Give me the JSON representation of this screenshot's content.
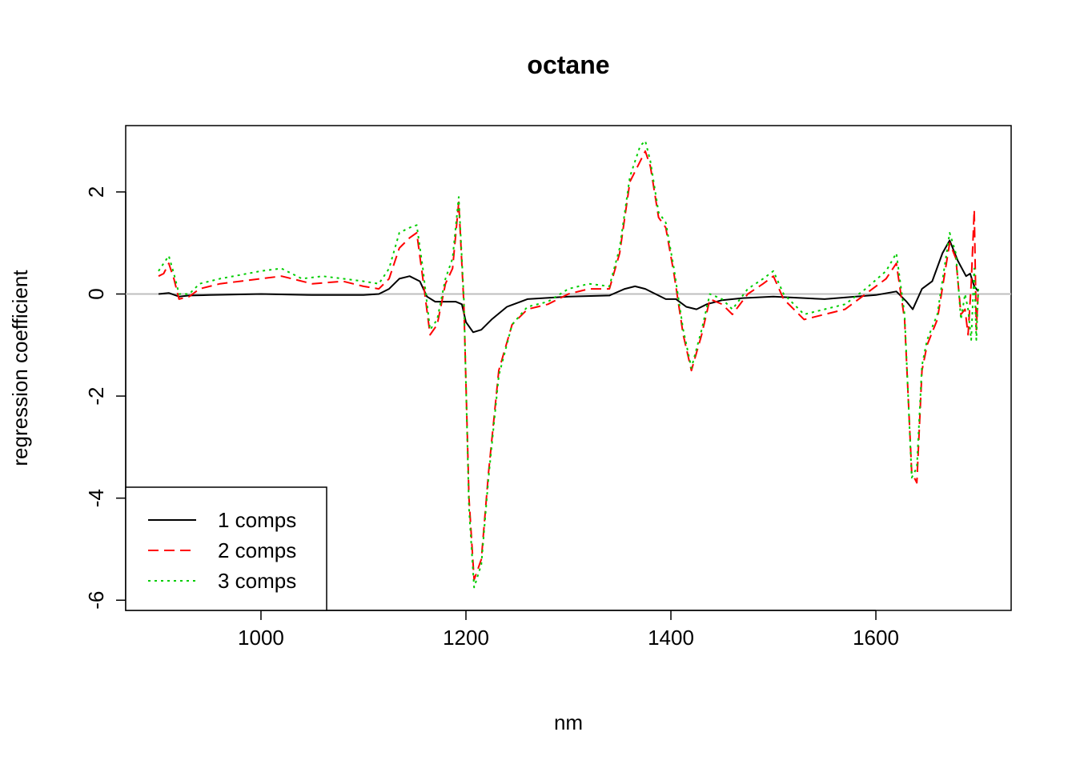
{
  "chart_data": {
    "type": "line",
    "title": "octane",
    "xlabel": "nm",
    "ylabel": "regression coefficient",
    "xlim": [
      868,
      1732
    ],
    "ylim": [
      -6.2,
      3.3
    ],
    "x_ticks": [
      1000,
      1200,
      1400,
      1600
    ],
    "y_ticks": [
      2,
      0,
      -2,
      -4,
      -6
    ],
    "x_tick_labels": [
      "1000",
      "1200",
      "1400",
      "1600"
    ],
    "y_tick_labels": [
      "2",
      "0",
      "-2",
      "-4",
      "-6"
    ],
    "reference_line_y": 0,
    "legend_position": "bottom-left",
    "series": [
      {
        "name": "1 comps",
        "color": "#000000",
        "dash": "solid",
        "points": [
          [
            900,
            0
          ],
          [
            910,
            0.02
          ],
          [
            920,
            -0.05
          ],
          [
            930,
            -0.03
          ],
          [
            950,
            -0.02
          ],
          [
            1000,
            0
          ],
          [
            1050,
            -0.02
          ],
          [
            1100,
            -0.02
          ],
          [
            1115,
            0
          ],
          [
            1125,
            0.1
          ],
          [
            1135,
            0.3
          ],
          [
            1145,
            0.35
          ],
          [
            1155,
            0.25
          ],
          [
            1162,
            -0.05
          ],
          [
            1170,
            -0.15
          ],
          [
            1180,
            -0.15
          ],
          [
            1190,
            -0.15
          ],
          [
            1196,
            -0.2
          ],
          [
            1200,
            -0.55
          ],
          [
            1207,
            -0.75
          ],
          [
            1215,
            -0.7
          ],
          [
            1225,
            -0.5
          ],
          [
            1240,
            -0.25
          ],
          [
            1260,
            -0.1
          ],
          [
            1300,
            -0.05
          ],
          [
            1340,
            -0.03
          ],
          [
            1355,
            0.1
          ],
          [
            1365,
            0.15
          ],
          [
            1375,
            0.1
          ],
          [
            1385,
            0
          ],
          [
            1395,
            -0.1
          ],
          [
            1405,
            -0.1
          ],
          [
            1415,
            -0.25
          ],
          [
            1425,
            -0.3
          ],
          [
            1435,
            -0.2
          ],
          [
            1450,
            -0.12
          ],
          [
            1470,
            -0.08
          ],
          [
            1500,
            -0.05
          ],
          [
            1550,
            -0.1
          ],
          [
            1600,
            -0.02
          ],
          [
            1620,
            0.05
          ],
          [
            1630,
            -0.15
          ],
          [
            1636,
            -0.3
          ],
          [
            1645,
            0.1
          ],
          [
            1655,
            0.25
          ],
          [
            1665,
            0.8
          ],
          [
            1672,
            1.05
          ],
          [
            1680,
            0.65
          ],
          [
            1688,
            0.35
          ],
          [
            1692,
            0.4
          ],
          [
            1696,
            0.15
          ],
          [
            1700,
            0.05
          ]
        ]
      },
      {
        "name": "2 comps",
        "color": "#ff0000",
        "dash": "dashed",
        "points": [
          [
            900,
            0.35
          ],
          [
            905,
            0.4
          ],
          [
            910,
            0.6
          ],
          [
            915,
            0.3
          ],
          [
            920,
            -0.1
          ],
          [
            930,
            -0.05
          ],
          [
            940,
            0.1
          ],
          [
            960,
            0.2
          ],
          [
            1000,
            0.3
          ],
          [
            1020,
            0.35
          ],
          [
            1050,
            0.2
          ],
          [
            1080,
            0.25
          ],
          [
            1100,
            0.15
          ],
          [
            1115,
            0.1
          ],
          [
            1125,
            0.3
          ],
          [
            1135,
            0.9
          ],
          [
            1145,
            1.1
          ],
          [
            1152,
            1.2
          ],
          [
            1158,
            0.3
          ],
          [
            1165,
            -0.8
          ],
          [
            1172,
            -0.6
          ],
          [
            1180,
            0.2
          ],
          [
            1187,
            0.5
          ],
          [
            1193,
            1.8
          ],
          [
            1198,
            -0.2
          ],
          [
            1203,
            -4
          ],
          [
            1208,
            -5.6
          ],
          [
            1215,
            -5.2
          ],
          [
            1222,
            -3.5
          ],
          [
            1232,
            -1.5
          ],
          [
            1245,
            -0.6
          ],
          [
            1260,
            -0.3
          ],
          [
            1280,
            -0.2
          ],
          [
            1300,
            0
          ],
          [
            1320,
            0.1
          ],
          [
            1340,
            0.1
          ],
          [
            1350,
            0.8
          ],
          [
            1360,
            2.2
          ],
          [
            1370,
            2.6
          ],
          [
            1375,
            2.8
          ],
          [
            1380,
            2.5
          ],
          [
            1388,
            1.5
          ],
          [
            1395,
            1.3
          ],
          [
            1403,
            0.4
          ],
          [
            1412,
            -0.8
          ],
          [
            1420,
            -1.5
          ],
          [
            1430,
            -0.8
          ],
          [
            1438,
            -0.1
          ],
          [
            1450,
            -0.2
          ],
          [
            1460,
            -0.4
          ],
          [
            1475,
            0
          ],
          [
            1490,
            0.2
          ],
          [
            1500,
            0.35
          ],
          [
            1510,
            -0.1
          ],
          [
            1530,
            -0.5
          ],
          [
            1550,
            -0.4
          ],
          [
            1570,
            -0.3
          ],
          [
            1590,
            0
          ],
          [
            1610,
            0.3
          ],
          [
            1620,
            0.6
          ],
          [
            1628,
            -0.5
          ],
          [
            1635,
            -3.5
          ],
          [
            1640,
            -3.7
          ],
          [
            1645,
            -1.5
          ],
          [
            1650,
            -1
          ],
          [
            1660,
            -0.5
          ],
          [
            1672,
            1
          ],
          [
            1678,
            0.7
          ],
          [
            1683,
            -0.4
          ],
          [
            1687,
            -0.3
          ],
          [
            1690,
            -0.8
          ],
          [
            1693,
            0.2
          ],
          [
            1696,
            1.65
          ],
          [
            1698,
            -0.7
          ],
          [
            1700,
            0.1
          ]
        ]
      },
      {
        "name": "3 comps",
        "color": "#00cd00",
        "dash": "dotted",
        "points": [
          [
            900,
            0.45
          ],
          [
            910,
            0.75
          ],
          [
            915,
            0.4
          ],
          [
            920,
            0
          ],
          [
            930,
            0
          ],
          [
            940,
            0.2
          ],
          [
            960,
            0.3
          ],
          [
            1000,
            0.45
          ],
          [
            1020,
            0.5
          ],
          [
            1040,
            0.3
          ],
          [
            1060,
            0.35
          ],
          [
            1080,
            0.3
          ],
          [
            1100,
            0.25
          ],
          [
            1115,
            0.2
          ],
          [
            1125,
            0.5
          ],
          [
            1135,
            1.2
          ],
          [
            1145,
            1.3
          ],
          [
            1152,
            1.35
          ],
          [
            1158,
            0.5
          ],
          [
            1165,
            -0.7
          ],
          [
            1172,
            -0.5
          ],
          [
            1180,
            0.3
          ],
          [
            1187,
            0.7
          ],
          [
            1193,
            1.9
          ],
          [
            1198,
            -0.1
          ],
          [
            1203,
            -4.2
          ],
          [
            1208,
            -5.75
          ],
          [
            1215,
            -5.3
          ],
          [
            1222,
            -3.6
          ],
          [
            1232,
            -1.6
          ],
          [
            1245,
            -0.6
          ],
          [
            1260,
            -0.25
          ],
          [
            1280,
            -0.15
          ],
          [
            1300,
            0.1
          ],
          [
            1320,
            0.2
          ],
          [
            1340,
            0.15
          ],
          [
            1350,
            0.9
          ],
          [
            1360,
            2.3
          ],
          [
            1370,
            2.9
          ],
          [
            1375,
            3
          ],
          [
            1380,
            2.6
          ],
          [
            1388,
            1.6
          ],
          [
            1395,
            1.4
          ],
          [
            1403,
            0.5
          ],
          [
            1412,
            -0.7
          ],
          [
            1420,
            -1.45
          ],
          [
            1430,
            -0.7
          ],
          [
            1438,
            0
          ],
          [
            1450,
            -0.1
          ],
          [
            1460,
            -0.3
          ],
          [
            1475,
            0.1
          ],
          [
            1490,
            0.3
          ],
          [
            1500,
            0.45
          ],
          [
            1510,
            0
          ],
          [
            1530,
            -0.4
          ],
          [
            1550,
            -0.3
          ],
          [
            1570,
            -0.2
          ],
          [
            1590,
            0.1
          ],
          [
            1610,
            0.45
          ],
          [
            1620,
            0.8
          ],
          [
            1628,
            -0.4
          ],
          [
            1635,
            -3.6
          ],
          [
            1640,
            -3.4
          ],
          [
            1645,
            -1.4
          ],
          [
            1650,
            -0.9
          ],
          [
            1660,
            -0.4
          ],
          [
            1672,
            1.2
          ],
          [
            1678,
            0.8
          ],
          [
            1683,
            -0.5
          ],
          [
            1687,
            0
          ],
          [
            1690,
            -0.3
          ],
          [
            1693,
            -0.9
          ],
          [
            1696,
            0.5
          ],
          [
            1698,
            -0.9
          ],
          [
            1700,
            0.1
          ]
        ]
      }
    ]
  }
}
